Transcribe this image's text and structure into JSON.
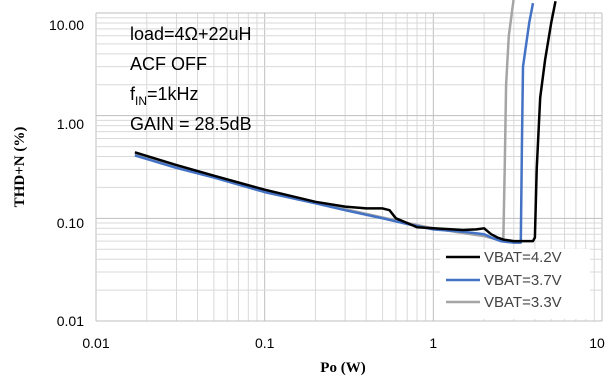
{
  "chart_data": {
    "type": "line",
    "title": "",
    "xlabel": "Po (W)",
    "ylabel": "THD+N (%)",
    "xscale": "log",
    "yscale": "log",
    "xlim": [
      0.01,
      10
    ],
    "ylim": [
      0.01,
      10
    ],
    "grid": true,
    "legend_position": "bottom-right",
    "x_tick_labels": [
      "0.01",
      "0.1",
      "1",
      "10"
    ],
    "y_tick_labels": [
      "0.01",
      "0.10",
      "1.00",
      "10.00"
    ],
    "annotations": {
      "line1": "load=4Ω+22uH",
      "line2": "ACF OFF",
      "line3_main": "f",
      "line3_sub": "IN",
      "line3_rest": "=1kHz",
      "line4": "GAIN = 28.5dB"
    },
    "series": [
      {
        "name": "VBAT=4.2V",
        "color": "#000000",
        "points": [
          [
            0.017,
            0.44
          ],
          [
            0.03,
            0.33
          ],
          [
            0.05,
            0.26
          ],
          [
            0.1,
            0.19
          ],
          [
            0.2,
            0.145
          ],
          [
            0.3,
            0.13
          ],
          [
            0.4,
            0.125
          ],
          [
            0.5,
            0.125
          ],
          [
            0.55,
            0.12
          ],
          [
            0.6,
            0.1
          ],
          [
            0.7,
            0.09
          ],
          [
            0.8,
            0.082
          ],
          [
            1.0,
            0.08
          ],
          [
            1.3,
            0.078
          ],
          [
            1.5,
            0.077
          ],
          [
            1.8,
            0.078
          ],
          [
            2.0,
            0.08
          ],
          [
            2.2,
            0.07
          ],
          [
            2.4,
            0.065
          ],
          [
            2.6,
            0.062
          ],
          [
            3.0,
            0.06
          ],
          [
            3.5,
            0.06
          ],
          [
            3.9,
            0.06
          ],
          [
            4.0,
            0.065
          ],
          [
            4.1,
            0.3
          ],
          [
            4.3,
            1.5
          ],
          [
            4.6,
            3.5
          ],
          [
            5.0,
            8.0
          ],
          [
            5.3,
            13.0
          ]
        ]
      },
      {
        "name": "VBAT=3.7V",
        "color": "#4472C4",
        "points": [
          [
            0.017,
            0.41
          ],
          [
            0.03,
            0.31
          ],
          [
            0.05,
            0.25
          ],
          [
            0.1,
            0.18
          ],
          [
            0.2,
            0.14
          ],
          [
            0.3,
            0.12
          ],
          [
            0.5,
            0.1
          ],
          [
            0.7,
            0.088
          ],
          [
            1.0,
            0.078
          ],
          [
            1.5,
            0.074
          ],
          [
            2.0,
            0.07
          ],
          [
            2.2,
            0.065
          ],
          [
            2.5,
            0.06
          ],
          [
            3.0,
            0.058
          ],
          [
            3.3,
            0.058
          ],
          [
            3.35,
            0.5
          ],
          [
            3.4,
            3.0
          ],
          [
            3.7,
            8.0
          ],
          [
            3.9,
            12.5
          ]
        ]
      },
      {
        "name": "VBAT=3.3V",
        "color": "#A5A5A5",
        "points": [
          [
            0.017,
            0.42
          ],
          [
            0.03,
            0.32
          ],
          [
            0.05,
            0.255
          ],
          [
            0.1,
            0.185
          ],
          [
            0.2,
            0.142
          ],
          [
            0.3,
            0.123
          ],
          [
            0.5,
            0.102
          ],
          [
            0.7,
            0.09
          ],
          [
            1.0,
            0.08
          ],
          [
            1.5,
            0.072
          ],
          [
            2.0,
            0.067
          ],
          [
            2.4,
            0.062
          ],
          [
            2.6,
            0.06
          ],
          [
            2.65,
            0.3
          ],
          [
            2.7,
            2.0
          ],
          [
            2.8,
            6.0
          ],
          [
            3.0,
            14.0
          ]
        ]
      }
    ]
  }
}
